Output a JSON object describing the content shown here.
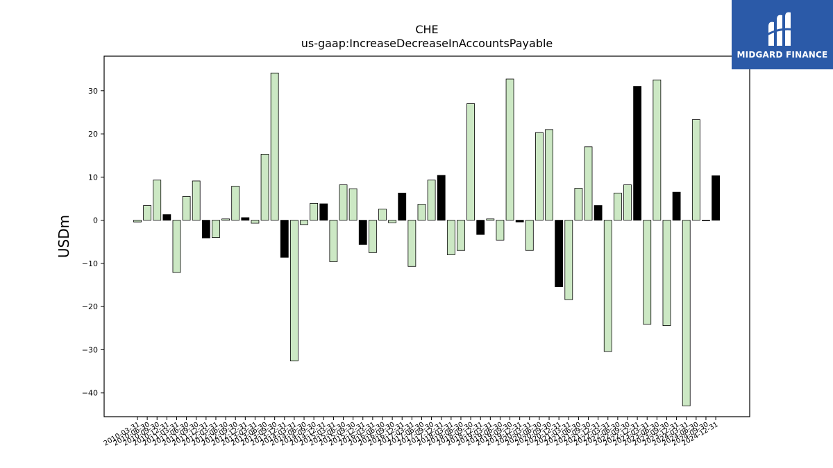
{
  "logo": {
    "text": "MIDGARD FINANCE",
    "icon": "midgard-logo-icon",
    "background": "#2b5aa8"
  },
  "chart_data": {
    "type": "bar",
    "title": "CHE",
    "subtitle": "us-gaap:IncreaseDecreaseInAccountsPayable",
    "ylabel": "USDm",
    "xlabel": "",
    "ylim": [
      -45.5,
      38
    ],
    "yticks": [
      -40,
      -30,
      -20,
      -10,
      0,
      10,
      20,
      30
    ],
    "grid": false,
    "colors": {
      "positive_quarter": "#cce8c4",
      "black_bar": "#000000",
      "edge": "#000000"
    },
    "categories": [
      "2010-03-31",
      "2010-06-30",
      "2010-09-30",
      "2010-12-31",
      "2011-03-31",
      "2011-06-30",
      "2011-09-30",
      "2011-12-31",
      "2012-03-31",
      "2012-06-30",
      "2012-09-30",
      "2012-12-31",
      "2013-03-31",
      "2013-06-30",
      "2013-09-30",
      "2013-12-31",
      "2014-03-31",
      "2014-06-30",
      "2014-09-30",
      "2014-12-31",
      "2015-03-31",
      "2015-06-30",
      "2015-09-30",
      "2015-12-31",
      "2016-03-31",
      "2016-06-30",
      "2016-09-30",
      "2016-12-31",
      "2017-03-31",
      "2017-06-30",
      "2017-09-30",
      "2017-12-31",
      "2018-03-31",
      "2018-06-30",
      "2018-09-30",
      "2018-12-31",
      "2019-03-31",
      "2019-06-30",
      "2019-09-30",
      "2019-12-31",
      "2020-03-31",
      "2020-06-30",
      "2020-09-30",
      "2020-12-31",
      "2021-03-31",
      "2021-06-30",
      "2021-09-30",
      "2021-12-31",
      "2022-03-31",
      "2022-06-30",
      "2022-09-30",
      "2022-12-31",
      "2023-03-31",
      "2023-06-30",
      "2023-09-30",
      "2023-12-31",
      "2024-03-31",
      "2024-06-30",
      "2024-09-30",
      "2024-12-31"
    ],
    "values": [
      -0.4,
      3.4,
      9.3,
      1.3,
      -12.1,
      5.5,
      9.1,
      -4.1,
      -4.0,
      0.3,
      7.9,
      0.6,
      -0.7,
      15.3,
      34.1,
      -8.6,
      -32.6,
      -1.0,
      3.9,
      3.8,
      -9.6,
      8.2,
      7.3,
      -5.6,
      -7.5,
      2.6,
      -0.6,
      6.3,
      -10.7,
      3.7,
      9.3,
      10.4,
      -8.0,
      -7.0,
      27.0,
      -3.3,
      0.3,
      -4.6,
      32.7,
      -0.4,
      -7.0,
      20.3,
      21.0,
      -15.4,
      -18.4,
      7.4,
      17.0,
      3.4,
      -30.4,
      6.3,
      8.2,
      31.0,
      -24.1,
      32.5,
      -24.4,
      6.5,
      -43.0,
      23.3,
      -0.1,
      10.3
    ],
    "bar_colors": [
      "green",
      "green",
      "green",
      "black",
      "green",
      "green",
      "green",
      "black",
      "green",
      "green",
      "green",
      "black",
      "green",
      "green",
      "green",
      "black",
      "green",
      "green",
      "green",
      "black",
      "green",
      "green",
      "green",
      "black",
      "green",
      "green",
      "green",
      "black",
      "green",
      "green",
      "green",
      "black",
      "green",
      "green",
      "green",
      "black",
      "green",
      "green",
      "green",
      "black",
      "green",
      "green",
      "green",
      "black",
      "green",
      "green",
      "green",
      "black",
      "green",
      "green",
      "green",
      "black",
      "green",
      "green",
      "green",
      "black",
      "green",
      "green",
      "green",
      "black"
    ]
  }
}
